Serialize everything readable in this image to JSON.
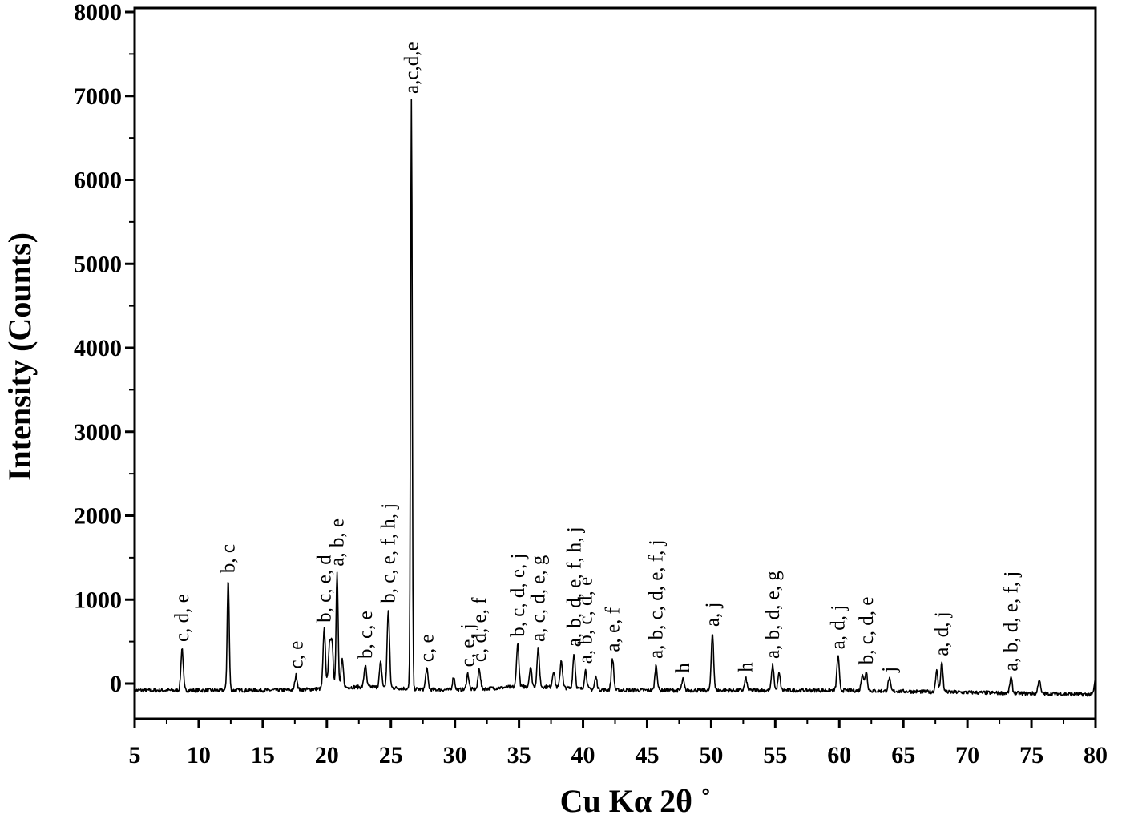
{
  "chart_data": {
    "type": "line",
    "title": "",
    "xlabel": "Cu Kα  2θ ˚",
    "ylabel": "Intensity (Counts)",
    "xlim": [
      5,
      80
    ],
    "ylim": [
      -400,
      8000
    ],
    "xticks": [
      5,
      10,
      15,
      20,
      25,
      30,
      35,
      40,
      45,
      50,
      55,
      60,
      65,
      70,
      75,
      80
    ],
    "yticks": [
      0,
      1000,
      2000,
      3000,
      4000,
      5000,
      6000,
      7000,
      8000
    ],
    "grid": false,
    "legend": "none",
    "color": "#000000",
    "peaks": [
      {
        "x": 8.7,
        "y": 420,
        "label": "c, d, e"
      },
      {
        "x": 12.3,
        "y": 1240,
        "label": "b, c"
      },
      {
        "x": 17.6,
        "y": 100,
        "label": "c, e"
      },
      {
        "x": 19.8,
        "y": 650,
        "label": "b, c, e, d"
      },
      {
        "x": 20.2,
        "y": 420,
        "label": ""
      },
      {
        "x": 20.4,
        "y": 500,
        "label": ""
      },
      {
        "x": 20.8,
        "y": 1320,
        "label": "a, b, e"
      },
      {
        "x": 21.2,
        "y": 280,
        "label": ""
      },
      {
        "x": 23.0,
        "y": 220,
        "label": "b, c, e"
      },
      {
        "x": 24.2,
        "y": 250,
        "label": ""
      },
      {
        "x": 24.8,
        "y": 880,
        "label": "b, c, e, f, h, j"
      },
      {
        "x": 26.6,
        "y": 6950,
        "label": "a,c,d,e"
      },
      {
        "x": 27.8,
        "y": 180,
        "label": "c, e"
      },
      {
        "x": 29.9,
        "y": 80,
        "label": ""
      },
      {
        "x": 31.0,
        "y": 120,
        "label": "c, e, j"
      },
      {
        "x": 31.9,
        "y": 180,
        "label": "c, d, e, f"
      },
      {
        "x": 34.9,
        "y": 480,
        "label": "b, c, d, e, j"
      },
      {
        "x": 35.9,
        "y": 200,
        "label": ""
      },
      {
        "x": 36.5,
        "y": 420,
        "label": "a, c, d, e, g"
      },
      {
        "x": 37.7,
        "y": 150,
        "label": ""
      },
      {
        "x": 38.3,
        "y": 280,
        "label": ""
      },
      {
        "x": 39.3,
        "y": 360,
        "label": "a, b, d, e, f, h, j"
      },
      {
        "x": 40.2,
        "y": 160,
        "label": "a, b, c, d, e"
      },
      {
        "x": 41.0,
        "y": 80,
        "label": ""
      },
      {
        "x": 42.3,
        "y": 300,
        "label": "a, e, f"
      },
      {
        "x": 45.7,
        "y": 220,
        "label": "a, b, c, d, e, f, j"
      },
      {
        "x": 47.8,
        "y": 50,
        "label": "h"
      },
      {
        "x": 50.1,
        "y": 600,
        "label": "a, j"
      },
      {
        "x": 52.7,
        "y": 60,
        "label": "h"
      },
      {
        "x": 54.8,
        "y": 220,
        "label": "a, b, d, e, g"
      },
      {
        "x": 55.3,
        "y": 120,
        "label": ""
      },
      {
        "x": 59.9,
        "y": 330,
        "label": "a, d, j"
      },
      {
        "x": 61.8,
        "y": 120,
        "label": ""
      },
      {
        "x": 62.1,
        "y": 150,
        "label": "b, c, d, e"
      },
      {
        "x": 63.9,
        "y": 60,
        "label": "j"
      },
      {
        "x": 67.6,
        "y": 150,
        "label": ""
      },
      {
        "x": 68.0,
        "y": 250,
        "label": "a, d, j"
      },
      {
        "x": 73.4,
        "y": 70,
        "label": "a, b, d, e, f, j"
      },
      {
        "x": 75.6,
        "y": 50,
        "label": ""
      },
      {
        "x": 80.0,
        "y": 60,
        "label": ""
      }
    ]
  }
}
